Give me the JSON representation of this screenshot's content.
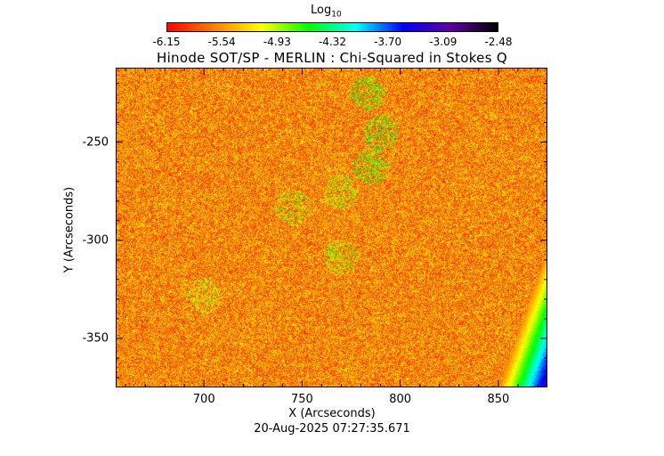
{
  "colorbar": {
    "title": "Log",
    "title_sub": "10",
    "ticks": [
      "-6.15",
      "-5.54",
      "-4.93",
      "-4.32",
      "-3.70",
      "-3.09",
      "-2.48"
    ],
    "colors": [
      "#ff0000",
      "#ff8000",
      "#ffff00",
      "#00ff00",
      "#00ffff",
      "#0000ff",
      "#6000a0",
      "#000000"
    ]
  },
  "timestamp": "20-Aug-2025 07:27:35.671",
  "chart_data": {
    "type": "heatmap",
    "title": "Hinode SOT/SP - MERLIN : Chi-Squared in Stokes Q",
    "xlabel": "X (Arcseconds)",
    "ylabel": "Y (Arcseconds)",
    "xlim": [
      655,
      875
    ],
    "ylim": [
      -375,
      -212
    ],
    "x_ticks": [
      700,
      750,
      800,
      850
    ],
    "y_ticks": [
      -250,
      -300,
      -350
    ],
    "x_tick_labels": [
      "700",
      "750",
      "800",
      "850"
    ],
    "y_tick_labels": [
      "-250",
      "-300",
      "-350"
    ],
    "value_range": [
      -6.15,
      -2.48
    ],
    "background_value": -5.6,
    "features": [
      {
        "x": 783,
        "y": -225,
        "value": -4.6
      },
      {
        "x": 790,
        "y": -245,
        "value": -4.5
      },
      {
        "x": 785,
        "y": -262,
        "value": -4.6
      },
      {
        "x": 770,
        "y": -275,
        "value": -4.8
      },
      {
        "x": 745,
        "y": -283,
        "value": -4.8
      },
      {
        "x": 770,
        "y": -308,
        "value": -4.8
      },
      {
        "x": 700,
        "y": -328,
        "value": -4.9
      },
      {
        "x": 870,
        "y": -365,
        "value": -3.5
      }
    ]
  }
}
